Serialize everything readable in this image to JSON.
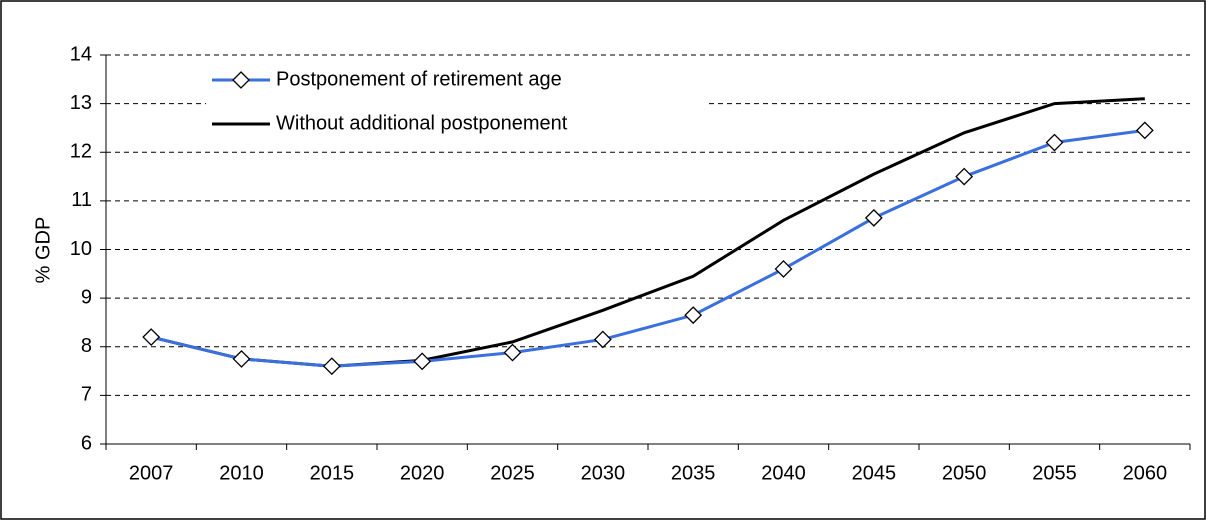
{
  "chart_data": {
    "type": "line",
    "y_label": "% GDP",
    "categories": [
      "2007",
      "2010",
      "2015",
      "2020",
      "2025",
      "2030",
      "2035",
      "2040",
      "2045",
      "2050",
      "2055",
      "2060"
    ],
    "series": [
      {
        "name": "Postponement of retirement age",
        "color": "#3a6fe0",
        "marker": "diamond",
        "values": [
          8.2,
          7.75,
          7.6,
          7.7,
          7.88,
          8.15,
          8.65,
          9.6,
          10.65,
          11.5,
          12.2,
          12.45
        ]
      },
      {
        "name": "Without additional postponement",
        "color": "#000000",
        "values": [
          8.2,
          7.75,
          7.6,
          7.72,
          8.1,
          8.75,
          9.45,
          10.6,
          11.55,
          12.4,
          13.0,
          13.1
        ]
      }
    ],
    "ylim": [
      6,
      14
    ],
    "yticks": [
      6,
      7,
      8,
      9,
      10,
      11,
      12,
      13,
      14
    ],
    "grid": true,
    "legend": "top-left"
  }
}
